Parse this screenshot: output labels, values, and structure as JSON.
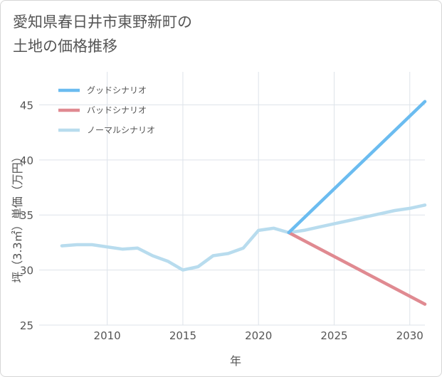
{
  "title": {
    "line1": "愛知県春日井市東野新町の",
    "line2": "土地の価格推移"
  },
  "chart_data": {
    "type": "line",
    "title": "愛知県春日井市東野新町の土地の価格推移",
    "xlabel": "年",
    "ylabel": "坪（3.3㎡）単価（万円）",
    "xlim": [
      2005.5,
      2031
    ],
    "ylim": [
      25,
      48
    ],
    "xticks": [
      2010,
      2015,
      2020,
      2025,
      2030
    ],
    "yticks": [
      25,
      30,
      35,
      40,
      45
    ],
    "grid": true,
    "legend_position": "top-left",
    "series": [
      {
        "name": "グッドシナリオ",
        "color": "#6bbcf0",
        "x": [
          2022,
          2031
        ],
        "y": [
          33.4,
          45.3
        ]
      },
      {
        "name": "バッドシナリオ",
        "color": "#e08a91",
        "x": [
          2022,
          2031
        ],
        "y": [
          33.4,
          26.9
        ]
      },
      {
        "name": "ノーマルシナリオ",
        "color": "#b8dcee",
        "x": [
          2007,
          2008,
          2009,
          2010,
          2011,
          2012,
          2013,
          2014,
          2015,
          2016,
          2017,
          2018,
          2019,
          2020,
          2021,
          2022,
          2023,
          2024,
          2025,
          2026,
          2027,
          2028,
          2029,
          2030,
          2031
        ],
        "y": [
          32.2,
          32.3,
          32.3,
          32.1,
          31.9,
          32.0,
          31.3,
          30.8,
          30.0,
          30.3,
          31.3,
          31.5,
          32.0,
          33.6,
          33.8,
          33.4,
          33.6,
          33.9,
          34.2,
          34.5,
          34.8,
          35.1,
          35.4,
          35.6,
          35.9
        ]
      }
    ]
  }
}
